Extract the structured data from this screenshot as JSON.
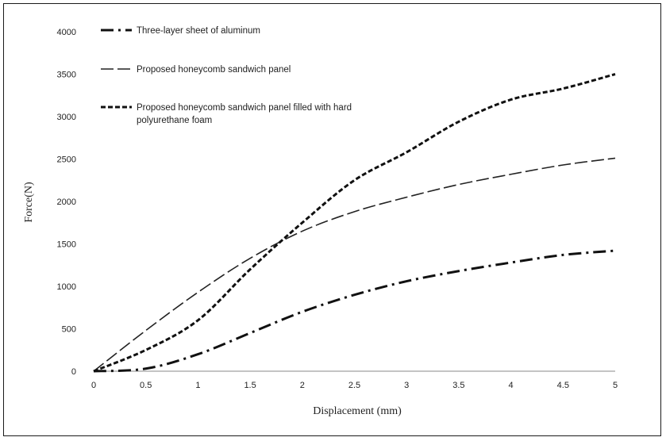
{
  "chart_data": {
    "type": "line",
    "title": "",
    "xlabel": "Displacement (mm)",
    "ylabel": "Force(N)",
    "xlim": [
      0,
      5
    ],
    "ylim": [
      0,
      4000
    ],
    "x_ticks": [
      "0",
      "0.5",
      "1",
      "1.5",
      "2",
      "2.5",
      "3",
      "3.5",
      "4",
      "4.5",
      "5"
    ],
    "y_ticks": [
      "0",
      "500",
      "1000",
      "1500",
      "2000",
      "2500",
      "3000",
      "3500",
      "4000"
    ],
    "grid": false,
    "legend_position": "top-left",
    "series": [
      {
        "name": "Three-layer sheet of aluminum",
        "style": "dash-dot",
        "color": "#111111",
        "x": [
          0,
          0.5,
          1,
          1.5,
          2,
          2.5,
          3,
          3.5,
          4,
          4.5,
          5
        ],
        "y": [
          0,
          30,
          200,
          450,
          700,
          900,
          1060,
          1180,
          1280,
          1370,
          1420
        ]
      },
      {
        "name": "Proposed honeycomb sandwich panel",
        "style": "long-dash",
        "color": "#222222",
        "x": [
          0,
          0.5,
          1,
          1.5,
          2,
          2.5,
          3,
          3.5,
          4,
          4.5,
          5
        ],
        "y": [
          0,
          480,
          930,
          1330,
          1650,
          1880,
          2050,
          2200,
          2320,
          2430,
          2510
        ]
      },
      {
        "name": "Proposed honeycomb sandwich panel filled with hard polyurethane foam",
        "name_lines": [
          "Proposed honeycomb sandwich panel filled with hard",
          "polyurethane foam"
        ],
        "style": "short-dash",
        "color": "#111111",
        "x": [
          0,
          0.5,
          1,
          1.5,
          2,
          2.5,
          3,
          3.5,
          4,
          4.5,
          5
        ],
        "y": [
          0,
          250,
          600,
          1200,
          1750,
          2250,
          2580,
          2940,
          3200,
          3330,
          3500
        ]
      }
    ]
  }
}
